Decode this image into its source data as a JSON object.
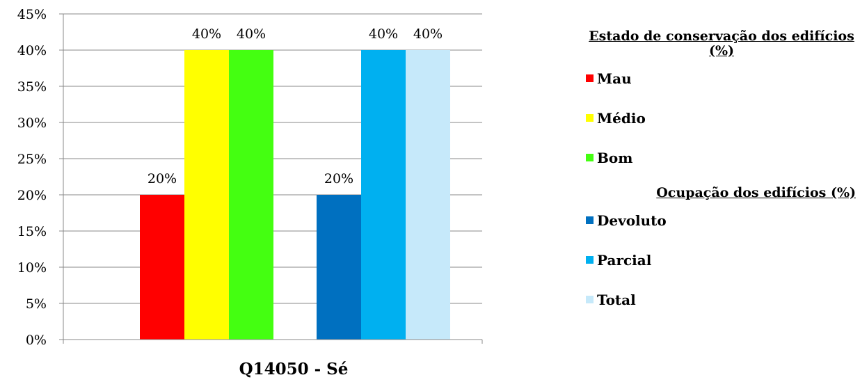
{
  "chart_data": {
    "type": "bar",
    "categories": [
      "Q14050 - Sé"
    ],
    "xlabel": "Q14050 - Sé",
    "ylim": [
      0,
      45
    ],
    "y_ticks": [
      "0%",
      "5%",
      "10%",
      "15%",
      "20%",
      "25%",
      "30%",
      "35%",
      "40%",
      "45%"
    ],
    "grid": true,
    "legend_position": "right",
    "legend_groups": [
      {
        "title": "Estado de conservação dos edifícios (%)",
        "series": [
          {
            "name": "Mau",
            "values": [
              20
            ],
            "label": "20%",
            "color": "#ff0000"
          },
          {
            "name": "Médio",
            "values": [
              40
            ],
            "label": "40%",
            "color": "#ffff00"
          },
          {
            "name": "Bom",
            "values": [
              40
            ],
            "label": "40%",
            "color": "#44ff11"
          }
        ]
      },
      {
        "title": "Ocupação dos edifícios (%)",
        "series": [
          {
            "name": "Devoluto",
            "values": [
              20
            ],
            "label": "20%",
            "color": "#0070c0"
          },
          {
            "name": "Parcial",
            "values": [
              40
            ],
            "label": "40%",
            "color": "#00b0f0"
          },
          {
            "name": "Total",
            "values": [
              40
            ],
            "label": "40%",
            "color": "#c6e9fa"
          }
        ]
      }
    ]
  }
}
